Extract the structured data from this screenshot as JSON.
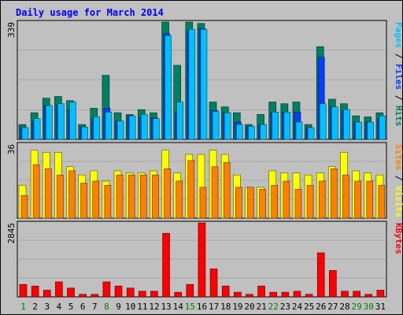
{
  "chart_data": [
    {
      "type": "bar",
      "panel": "pages-files-hits",
      "title": "Daily usage for March 2014",
      "ymax_label": "339",
      "right_label": {
        "parts": [
          "Pages",
          " / ",
          "Files",
          " / ",
          "Hits"
        ],
        "colors": [
          "#00c0ff",
          "#000000",
          "#0040ff",
          "#000000",
          "#008060"
        ]
      },
      "categories": [
        "1",
        "2",
        "3",
        "4",
        "5",
        "6",
        "7",
        "8",
        "9",
        "10",
        "11",
        "12",
        "13",
        "14",
        "15",
        "16",
        "17",
        "18",
        "19",
        "20",
        "21",
        "22",
        "23",
        "24",
        "25",
        "26",
        "27",
        "28",
        "29",
        "30",
        "31"
      ],
      "ylim": [
        0,
        339
      ],
      "series": [
        {
          "name": "Hits",
          "color": "#008060",
          "values": [
            43,
            77,
            119,
            124,
            112,
            43,
            90,
            185,
            77,
            72,
            86,
            77,
            339,
            214,
            339,
            335,
            108,
            94,
            77,
            43,
            72,
            108,
            103,
            108,
            43,
            268,
            116,
            103,
            68,
            65,
            77
          ]
        },
        {
          "name": "Files",
          "color": "#0040ff",
          "values": [
            34,
            53,
            98,
            98,
            84,
            36,
            59,
            90,
            53,
            68,
            65,
            62,
            306,
            77,
            312,
            320,
            84,
            77,
            50,
            38,
            43,
            79,
            79,
            79,
            34,
            237,
            94,
            82,
            50,
            50,
            60
          ]
        },
        {
          "name": "Pages",
          "color": "#00c0ff",
          "values": [
            34,
            60,
            98,
            103,
            108,
            36,
            65,
            79,
            53,
            68,
            72,
            60,
            300,
            108,
            318,
            318,
            81,
            77,
            43,
            38,
            43,
            79,
            79,
            50,
            34,
            103,
            94,
            86,
            50,
            50,
            68
          ]
        }
      ]
    },
    {
      "type": "bar",
      "panel": "sites-visits",
      "ymax_label": "36",
      "right_label": {
        "parts": [
          "Sites",
          " / ",
          "Visits"
        ],
        "colors": [
          "#ff8000",
          "#000000",
          "#ffff00"
        ]
      },
      "ylim": [
        0,
        36
      ],
      "series": [
        {
          "name": "Visits",
          "color": "#ffff00",
          "values": [
            16,
            33,
            32,
            32,
            25,
            21,
            23,
            18,
            23,
            22,
            22,
            23,
            33,
            22,
            31,
            31,
            33,
            31,
            21,
            15,
            15,
            23,
            22,
            22,
            21,
            22,
            25,
            32,
            23,
            22,
            21
          ]
        },
        {
          "name": "Sites",
          "color": "#ff8000",
          "values": [
            11,
            26,
            24,
            21,
            23,
            17,
            18,
            16,
            21,
            21,
            21,
            21,
            24,
            18,
            28,
            15,
            25,
            27,
            15,
            15,
            14,
            16,
            18,
            14,
            16,
            18,
            24,
            21,
            18,
            18,
            16
          ]
        }
      ]
    },
    {
      "type": "bar",
      "panel": "kbytes",
      "ymax_label": "2845",
      "right_label": {
        "parts": [
          "KBytes"
        ],
        "colors": [
          "#ff0000"
        ]
      },
      "ylim": [
        0,
        2845
      ],
      "series": [
        {
          "name": "KBytes",
          "color": "#ff0000",
          "values": [
            478,
            418,
            258,
            578,
            339,
            99,
            99,
            578,
            418,
            339,
            218,
            218,
            2446,
            178,
            478,
            2845,
            1076,
            418,
            179,
            99,
            418,
            179,
            179,
            218,
            99,
            1695,
            1016,
            218,
            218,
            99,
            259
          ]
        }
      ]
    }
  ],
  "weekend_days": [
    "1",
    "8",
    "15",
    "22",
    "29",
    "30"
  ],
  "colors": {
    "frame_bg": "#c0c0c0",
    "title": "#0000ff",
    "axis_text": "#000000",
    "weekend": "#008000"
  }
}
